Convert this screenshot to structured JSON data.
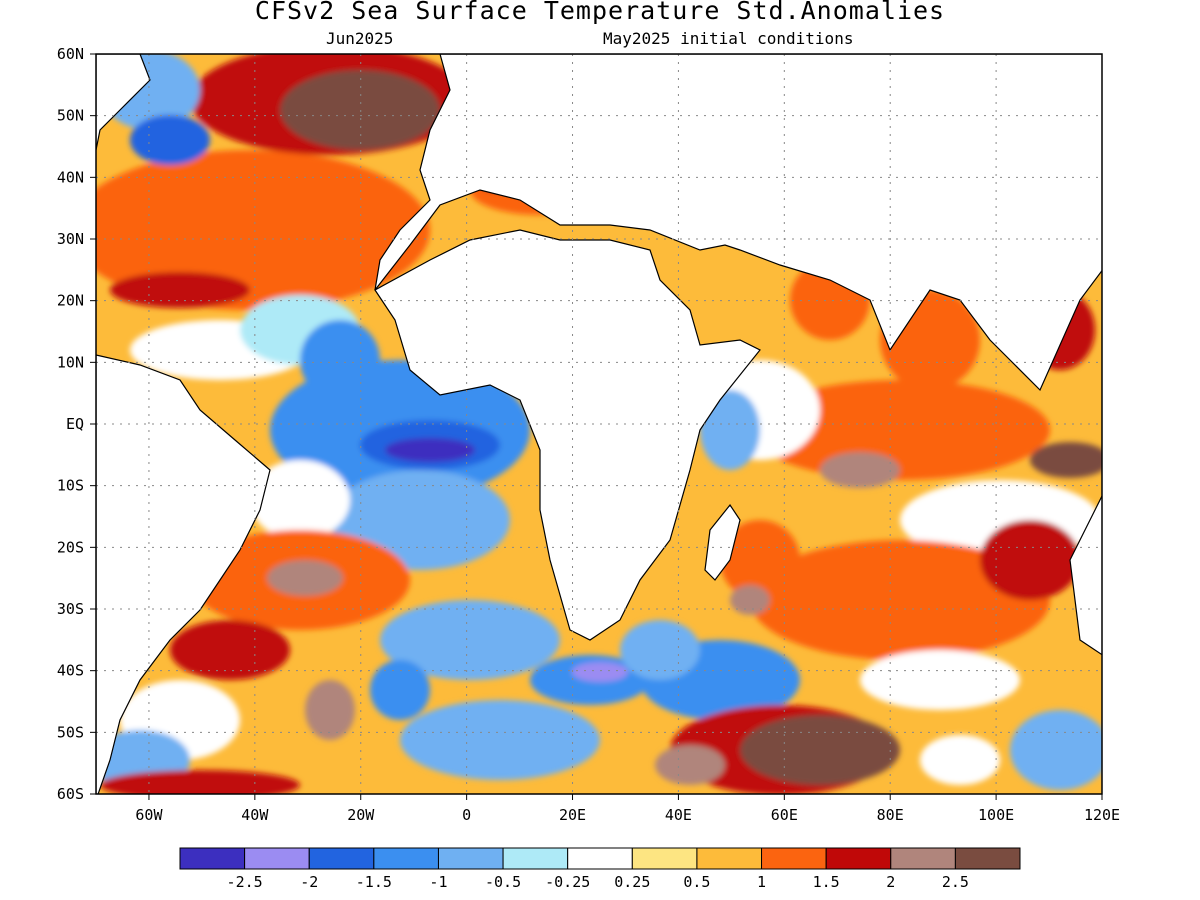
{
  "title": "CFSv2 Sea Surface Temperature Std.Anomalies",
  "subtitle_left": "Jun2025",
  "subtitle_right": "May2025 initial conditions",
  "chart_data": {
    "type": "heatmap",
    "lon_range": [
      -70,
      120
    ],
    "lat_range": [
      -60,
      60
    ],
    "x_ticks": [
      "60W",
      "40W",
      "20W",
      "0",
      "20E",
      "40E",
      "60E",
      "80E",
      "100E",
      "120E"
    ],
    "x_tick_values": [
      -60,
      -40,
      -20,
      0,
      20,
      40,
      60,
      80,
      100,
      120
    ],
    "y_ticks": [
      "60N",
      "50N",
      "40N",
      "30N",
      "20N",
      "10N",
      "EQ",
      "10S",
      "20S",
      "30S",
      "40S",
      "50S",
      "60S"
    ],
    "y_tick_values": [
      60,
      50,
      40,
      30,
      20,
      10,
      0,
      -10,
      -20,
      -30,
      -40,
      -50,
      -60
    ],
    "grid": true,
    "colorbar": {
      "labels": [
        "-2.5",
        "-2",
        "-1.5",
        "-1",
        "-0.5",
        "-0.25",
        "0.25",
        "0.5",
        "1",
        "1.5",
        "2",
        "2.5"
      ],
      "colors": [
        "#3c2fbf",
        "#9b8cf2",
        "#2264e0",
        "#3b8ff0",
        "#6fb0f2",
        "#aeeaf7",
        "#ffffff",
        "#fde582",
        "#fdbb3a",
        "#fb6410",
        "#c00808",
        "#b0857c",
        "#7a4c40"
      ]
    }
  }
}
